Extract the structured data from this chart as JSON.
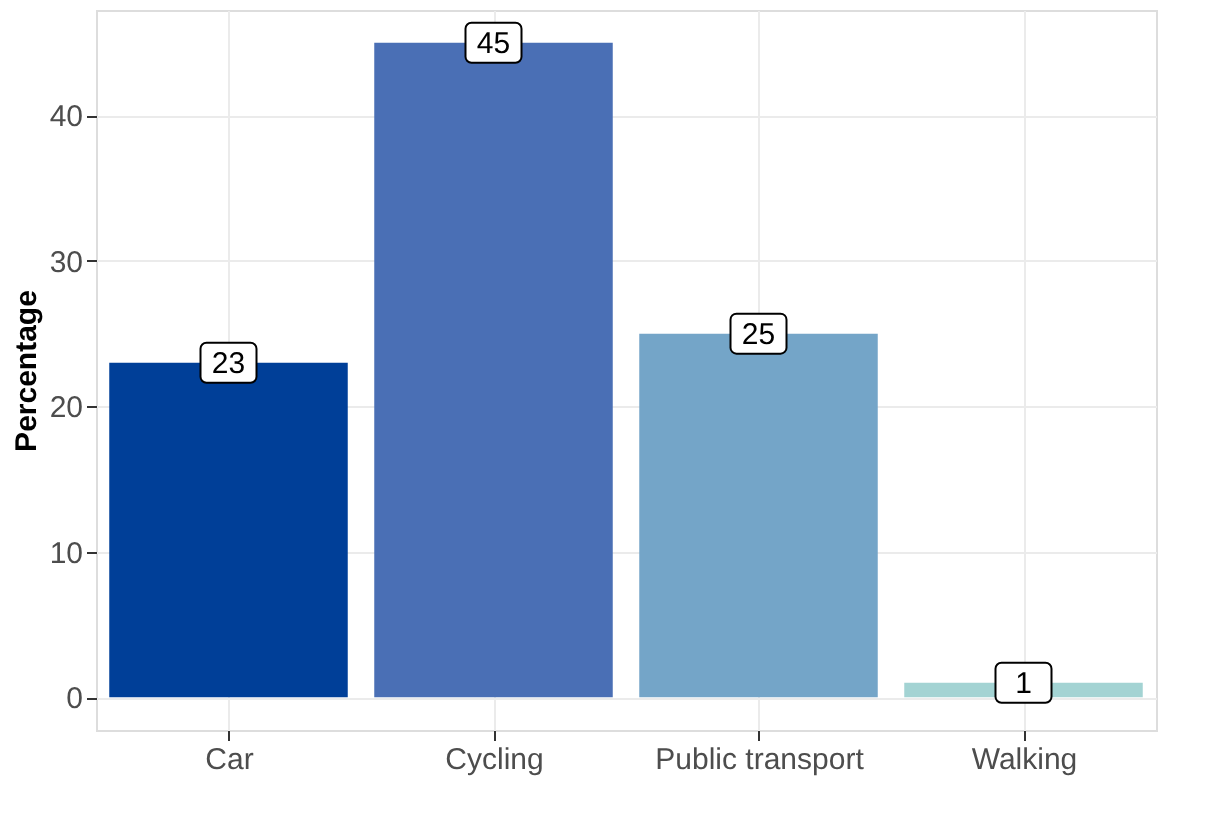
{
  "chart_data": {
    "type": "bar",
    "ylabel": "Percentage",
    "categories": [
      "Car",
      "Cycling",
      "Public transport",
      "Walking"
    ],
    "values": [
      23,
      45,
      25,
      1
    ],
    "colors": [
      "#003f98",
      "#4a6fb5",
      "#74a5c8",
      "#a3d3d3"
    ],
    "ylim": [
      -2.25,
      47.25
    ],
    "yticks": [
      0,
      10,
      20,
      30,
      40
    ],
    "grid": true,
    "data_labels": true
  }
}
